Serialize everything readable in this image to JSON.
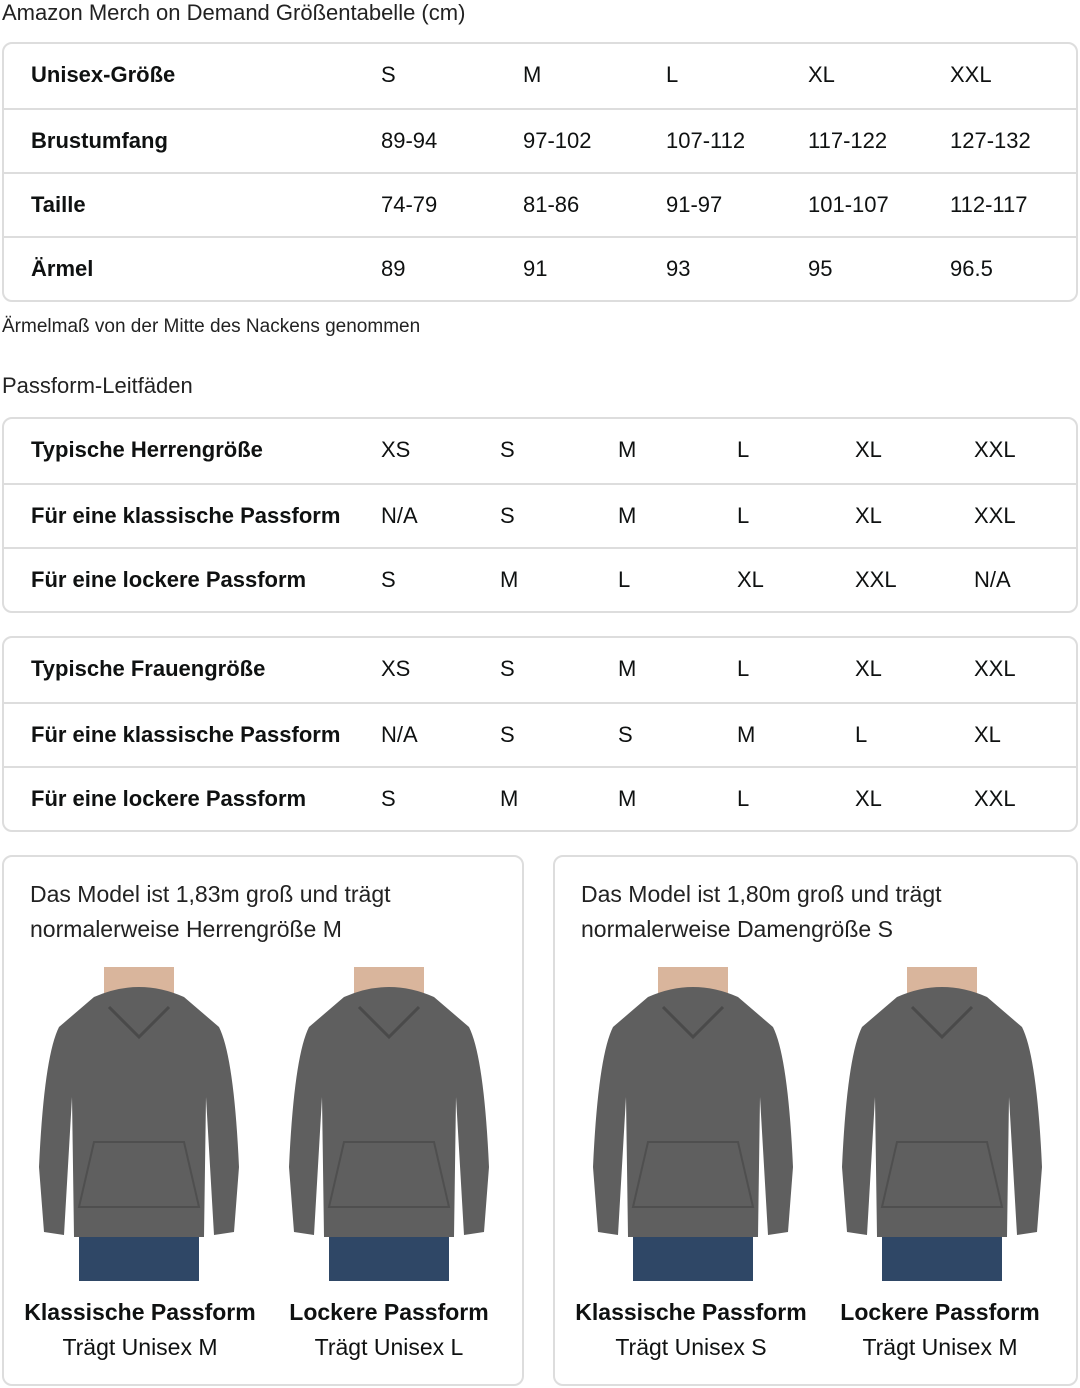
{
  "title": "Amazon Merch on Demand Größentabelle (cm)",
  "size_table": {
    "rows": [
      [
        "Unisex-Größe",
        "S",
        "M",
        "L",
        "XL",
        "XXL"
      ],
      [
        "Brustumfang",
        "89-94",
        "97-102",
        "107-112",
        "117-122",
        "127-132"
      ],
      [
        "Taille",
        "74-79",
        "81-86",
        "91-97",
        "101-107",
        "112-117"
      ],
      [
        "Ärmel",
        "89",
        "91",
        "93",
        "95",
        "96.5"
      ]
    ]
  },
  "sleeve_note": "Ärmelmaß von der Mitte des Nackens genommen",
  "fit_title": "Passform-Leitfäden",
  "men_table": {
    "rows": [
      [
        "Typische Herrengröße",
        "XS",
        "S",
        "M",
        "L",
        "XL",
        "XXL"
      ],
      [
        "Für eine klassische Passform",
        "N/A",
        "S",
        "M",
        "L",
        "XL",
        "XXL"
      ],
      [
        "Für eine lockere Passform",
        "S",
        "M",
        "L",
        "XL",
        "XXL",
        "N/A"
      ]
    ]
  },
  "women_table": {
    "rows": [
      [
        "Typische Frauengröße",
        "XS",
        "S",
        "M",
        "L",
        "XL",
        "XXL"
      ],
      [
        "Für eine klassische Passform",
        "N/A",
        "S",
        "S",
        "M",
        "L",
        "XL"
      ],
      [
        "Für eine lockere Passform",
        "S",
        "M",
        "M",
        "L",
        "XL",
        "XXL"
      ]
    ]
  },
  "cards": [
    {
      "desc1": "Das Model ist 1,83m groß und trägt",
      "desc2": "normalerweise Herrengröße M",
      "figs": [
        {
          "fit": "Klassische Passform",
          "wears": "Trägt Unisex M"
        },
        {
          "fit": "Lockere Passform",
          "wears": "Trägt Unisex L"
        }
      ]
    },
    {
      "desc1": "Das Model ist 1,80m groß und trägt",
      "desc2": "normalerweise Damengröße S",
      "figs": [
        {
          "fit": "Klassische Passform",
          "wears": "Trägt Unisex S"
        },
        {
          "fit": "Lockere Passform",
          "wears": "Trägt Unisex M"
        }
      ]
    }
  ],
  "colors": {
    "hoodie": "#5f5f5f",
    "border": "#dddddd",
    "jeans": "#2f4766"
  }
}
